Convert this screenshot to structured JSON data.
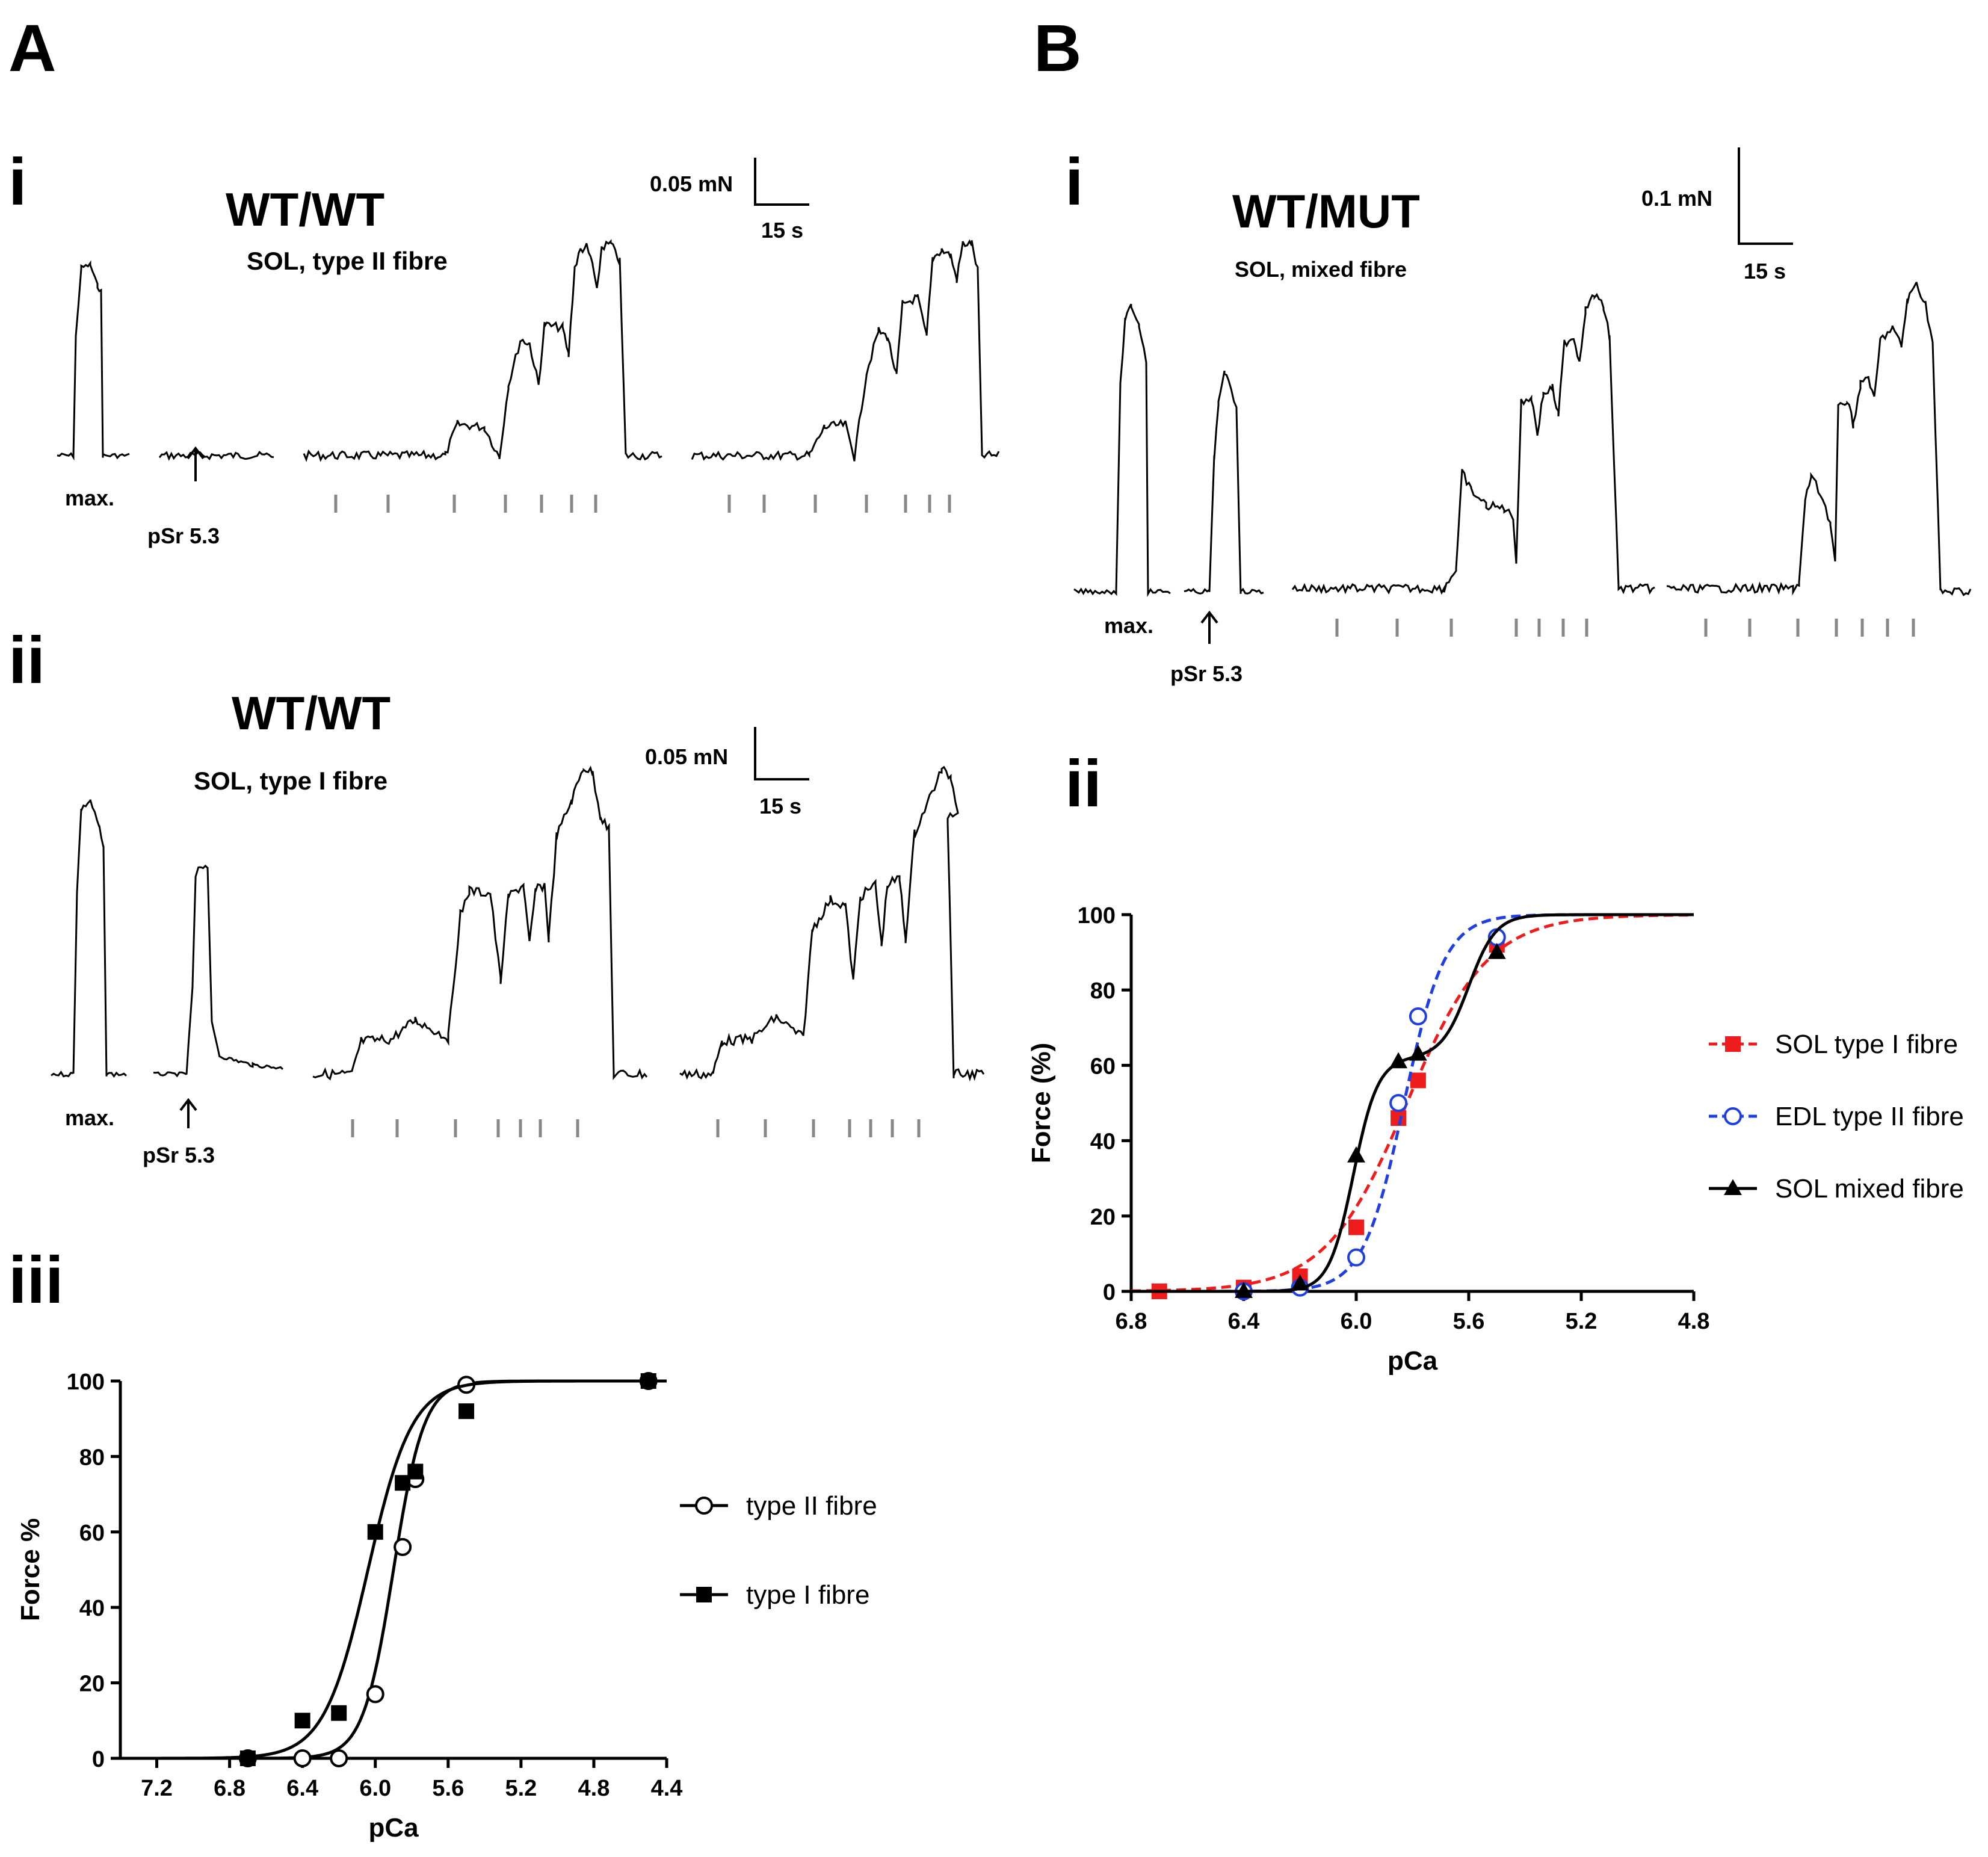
{
  "panel_A": {
    "letter": "A",
    "i": {
      "label": "i",
      "title": "WT/WT",
      "subtitle": "SOL, type II fibre",
      "scale_force": "0.05 mN",
      "scale_time": "15 s",
      "max_label": "max.",
      "psr_label": "pSr 5.3"
    },
    "ii": {
      "label": "ii",
      "title": "WT/WT",
      "subtitle": "SOL, type I fibre",
      "scale_force": "0.05 mN",
      "scale_time": "15 s",
      "max_label": "max.",
      "psr_label": "pSr 5.3"
    },
    "iii": {
      "label": "iii"
    }
  },
  "panel_B": {
    "letter": "B",
    "i": {
      "label": "i",
      "title": "WT/MUT",
      "subtitle": "SOL, mixed fibre",
      "scale_force": "0.1 mN",
      "scale_time": "15 s",
      "max_label": "max.",
      "psr_label": "pSr 5.3"
    },
    "ii": {
      "label": "ii"
    }
  },
  "chart_data": [
    {
      "id": "A-iii",
      "type": "scatter",
      "title": "",
      "xlabel": "pCa",
      "ylabel": "Force %",
      "xlim": [
        7.4,
        4.4
      ],
      "ylim": [
        0,
        100
      ],
      "x_reversed": true,
      "xticks": [
        "7.2",
        "6.8",
        "6.4",
        "6.0",
        "5.6",
        "5.2",
        "4.8",
        "4.4"
      ],
      "yticks": [
        "0",
        "20",
        "40",
        "60",
        "80",
        "100"
      ],
      "legend_position": "right",
      "series": [
        {
          "name": "type II fibre",
          "marker": "open-circle",
          "color": "#000000",
          "x": [
            6.7,
            6.4,
            6.2,
            6.0,
            5.85,
            5.78,
            5.5,
            4.5
          ],
          "y": [
            0,
            0,
            0,
            17,
            56,
            74,
            99,
            100
          ],
          "fit": {
            "pCa50": 5.9,
            "hill": 5.2
          }
        },
        {
          "name": "type I fibre",
          "marker": "filled-square",
          "color": "#000000",
          "x": [
            6.7,
            6.4,
            6.2,
            6.0,
            5.85,
            5.78,
            5.5,
            4.5
          ],
          "y": [
            0,
            10,
            12,
            60,
            73,
            76,
            92,
            100
          ],
          "fit": {
            "pCa50": 6.04,
            "hill": 3.6
          }
        }
      ]
    },
    {
      "id": "B-ii",
      "type": "scatter",
      "title": "",
      "xlabel": "pCa",
      "ylabel": "Force (%)",
      "xlim": [
        6.8,
        4.8
      ],
      "ylim": [
        0,
        100
      ],
      "x_reversed": true,
      "xticks": [
        "6.8",
        "6.4",
        "6.0",
        "5.6",
        "5.2",
        "4.8"
      ],
      "yticks": [
        "0",
        "20",
        "40",
        "60",
        "80",
        "100"
      ],
      "legend_position": "right",
      "series": [
        {
          "name": "SOL type I fibre",
          "marker": "filled-square",
          "color": "#ee1c1c",
          "line": "dashed",
          "x": [
            6.7,
            6.4,
            6.2,
            6.0,
            5.85,
            5.78,
            5.5
          ],
          "y": [
            0,
            1,
            4,
            17,
            46,
            56,
            92
          ],
          "fit": {
            "pCa50": 5.82,
            "hill": 3.0
          }
        },
        {
          "name": "EDL type II fibre",
          "marker": "open-circle",
          "color": "#1f3fe0",
          "line": "dashed",
          "x": [
            6.4,
            6.2,
            6.0,
            5.85,
            5.78,
            5.5
          ],
          "y": [
            0,
            1,
            9,
            50,
            73,
            94
          ],
          "fit": {
            "pCa50": 5.83,
            "hill": 6.0
          }
        },
        {
          "name": "SOL mixed fibre",
          "marker": "filled-triangle",
          "color": "#000000",
          "line": "solid",
          "x": [
            6.4,
            6.2,
            6.0,
            5.85,
            5.78,
            5.5
          ],
          "y": [
            0,
            2,
            36,
            61,
            63,
            90
          ],
          "fit": {
            "biphasic": true,
            "a1": 62,
            "pCa50_1": 6.01,
            "hill_1": 10.0,
            "a2": 38,
            "pCa50_2": 5.6,
            "hill_2": 9.0
          }
        }
      ]
    }
  ]
}
